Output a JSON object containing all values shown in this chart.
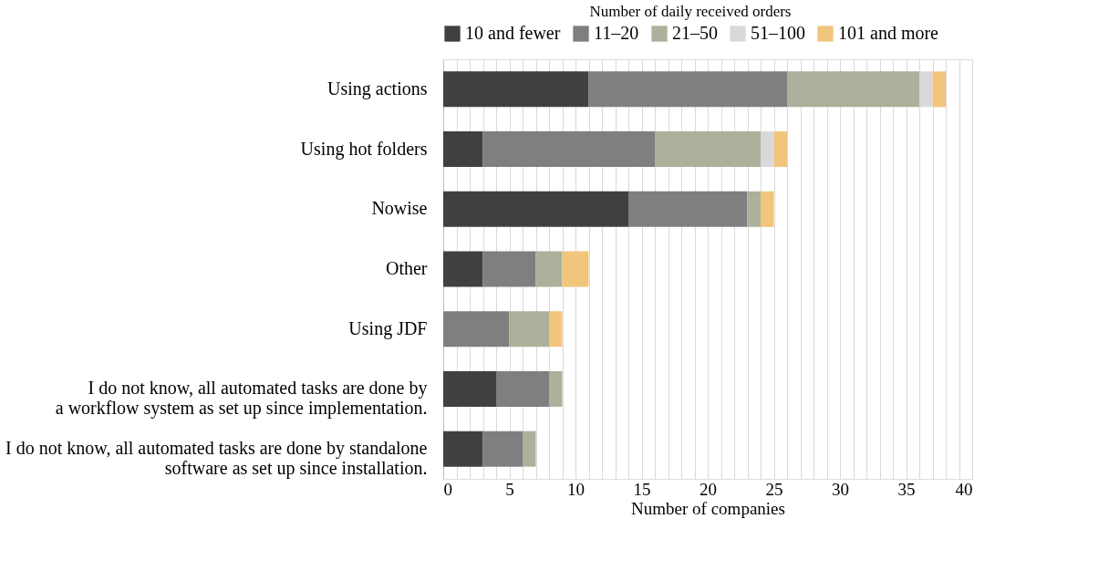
{
  "chart_data": {
    "type": "bar",
    "orientation": "horizontal",
    "stacked": true,
    "xlabel": "Number of companies",
    "legend_title": "Number of daily received orders",
    "legend": "top",
    "categories": [
      "Using actions",
      "Using hot folders",
      "Nowise",
      "Other",
      "Using JDF",
      "I do not know, all automated tasks are done by\na workflow system as set up since implementation.",
      "I do not know, all automated tasks are done by standalone\nsoftware as set up since installation."
    ],
    "series": [
      {
        "name": "10 and fewer",
        "color": "#404040",
        "values": [
          11,
          3,
          14,
          3,
          0,
          4,
          3
        ]
      },
      {
        "name": "11–20",
        "color": "#7f7f7f",
        "values": [
          15,
          13,
          9,
          4,
          5,
          4,
          3
        ]
      },
      {
        "name": "21–50",
        "color": "#adb09a",
        "values": [
          10,
          8,
          1,
          2,
          3,
          1,
          1
        ]
      },
      {
        "name": "51–100",
        "color": "#d9d9d9",
        "values": [
          1,
          1,
          0,
          0,
          0,
          0,
          0
        ]
      },
      {
        "name": "101 and more",
        "color": "#f2c57c",
        "values": [
          1,
          1,
          1,
          2,
          1,
          0,
          0
        ]
      }
    ],
    "xlim": [
      0,
      40
    ],
    "xticks": [
      0,
      {
        "value": 1,
        "label": null
      },
      {
        "value": 2,
        "label": null
      },
      {
        "value": 3,
        "label": null
      },
      {
        "value": 4,
        "label": null
      },
      5,
      {
        "value": 6,
        "label": null
      },
      {
        "value": 7,
        "label": null
      },
      {
        "value": 8,
        "label": null
      },
      {
        "value": 9,
        "label": null
      },
      10,
      {
        "value": 11,
        "label": null
      },
      {
        "value": 12,
        "label": null
      },
      {
        "value": 13,
        "label": null
      },
      {
        "value": 14,
        "label": null
      },
      15,
      {
        "value": 16,
        "label": null
      },
      {
        "value": 17,
        "label": null
      },
      {
        "value": 18,
        "label": null
      },
      {
        "value": 19,
        "label": null
      },
      20,
      {
        "value": 21,
        "label": null
      },
      {
        "value": 22,
        "label": null
      },
      {
        "value": 23,
        "label": null
      },
      {
        "value": 24,
        "label": null
      },
      25,
      {
        "value": 26,
        "label": null
      },
      {
        "value": 27,
        "label": null
      },
      {
        "value": 28,
        "label": null
      },
      {
        "value": 29,
        "label": null
      },
      30,
      {
        "value": 31,
        "label": null
      },
      {
        "value": 32,
        "label": null
      },
      {
        "value": 33,
        "label": null
      },
      {
        "value": 34,
        "label": null
      },
      35,
      {
        "value": 36,
        "label": null
      },
      {
        "value": 37,
        "label": null
      },
      {
        "value": 38,
        "label": null
      },
      {
        "value": 39,
        "label": null
      },
      40
    ],
    "grid": "x"
  }
}
